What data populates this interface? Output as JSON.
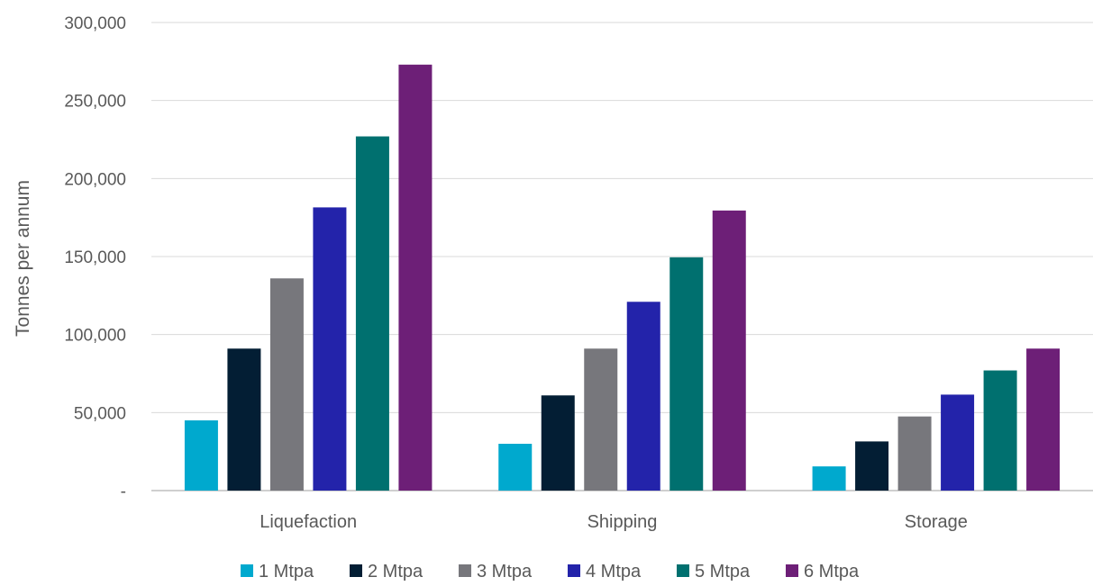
{
  "chart_data": {
    "type": "bar",
    "title": "",
    "xlabel": "",
    "ylabel": "Tonnes per annum",
    "categories": [
      "Liquefaction",
      "Shipping",
      "Storage"
    ],
    "ylim": [
      0,
      300000
    ],
    "yticks": [
      0,
      50000,
      100000,
      150000,
      200000,
      250000,
      300000
    ],
    "ytick_labels": [
      "-",
      "50,000",
      "100,000",
      "150,000",
      "200,000",
      "250,000",
      "300,000"
    ],
    "grid": true,
    "legend_position": "bottom",
    "series": [
      {
        "name": "1 Mtpa",
        "color": "#00A9CE",
        "values": [
          45000,
          30000,
          15500
        ]
      },
      {
        "name": "2 Mtpa",
        "color": "#031E34",
        "values": [
          91000,
          61000,
          31500
        ]
      },
      {
        "name": "3 Mtpa",
        "color": "#77777C",
        "values": [
          136000,
          91000,
          47500
        ]
      },
      {
        "name": "4 Mtpa",
        "color": "#2323AA",
        "values": [
          181500,
          121000,
          61500
        ]
      },
      {
        "name": "5 Mtpa",
        "color": "#00706F",
        "values": [
          227000,
          149500,
          77000
        ]
      },
      {
        "name": "6 Mtpa",
        "color": "#6D1F77",
        "values": [
          273000,
          179500,
          91000
        ]
      }
    ]
  }
}
